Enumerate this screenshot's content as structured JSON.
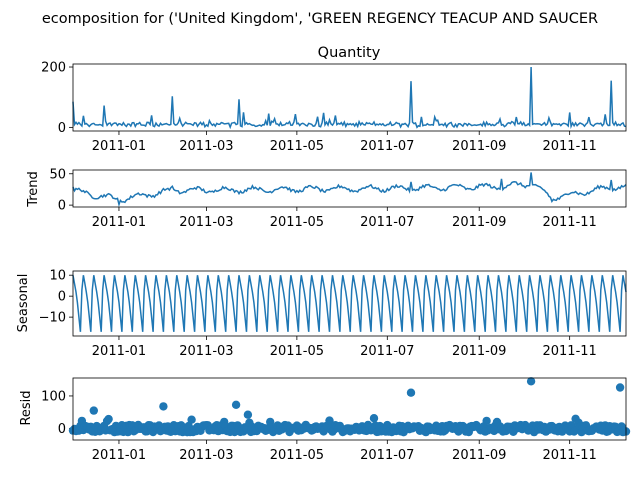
{
  "chart_data": {
    "type": "line",
    "suptitle": "ecomposition for ('United Kingdom', 'GREEN REGENCY TEACUP AND SAUCER",
    "color": "#1f77b4",
    "x_ticks": [
      "2011-01",
      "2011-03",
      "2011-05",
      "2011-07",
      "2011-09",
      "2011-11"
    ],
    "x_tick_dates": [
      "2011-01-01",
      "2011-03-01",
      "2011-05-01",
      "2011-07-01",
      "2011-09-01",
      "2011-11-01"
    ],
    "x_range": [
      "2010-12-01",
      "2011-12-09"
    ],
    "panels": [
      {
        "id": "observed",
        "title": "Quantity",
        "ylabel": "",
        "ylim": [
          -12,
          210
        ],
        "yticks": [
          "0",
          "200"
        ],
        "ytick_values": [
          0,
          200
        ],
        "style": "line",
        "key_points": [
          {
            "x": "2010-12-01",
            "y": 85
          },
          {
            "x": "2010-12-22",
            "y": 72
          },
          {
            "x": "2011-02-06",
            "y": 103
          },
          {
            "x": "2011-03-23",
            "y": 93
          },
          {
            "x": "2011-07-17",
            "y": 153
          },
          {
            "x": "2011-10-06",
            "y": 200
          },
          {
            "x": "2011-11-29",
            "y": 155
          }
        ]
      },
      {
        "id": "trend",
        "title": "",
        "ylabel": "Trend",
        "ylim": [
          -3,
          56
        ],
        "yticks": [
          "0",
          "50"
        ],
        "ytick_values": [
          0,
          50
        ],
        "style": "line",
        "key_points": [
          {
            "x": "2010-12-01",
            "y": 29
          },
          {
            "x": "2011-01-01",
            "y": 1
          },
          {
            "x": "2011-02-06",
            "y": 30
          },
          {
            "x": "2011-07-17",
            "y": 37
          },
          {
            "x": "2011-09-16",
            "y": 42
          },
          {
            "x": "2011-10-06",
            "y": 52
          },
          {
            "x": "2011-10-20",
            "y": 6
          },
          {
            "x": "2011-11-29",
            "y": 40
          }
        ]
      },
      {
        "id": "seasonal",
        "title": "",
        "ylabel": "Seasonal",
        "ylim": [
          -19,
          12
        ],
        "yticks": [
          "−10",
          "0",
          "10"
        ],
        "ytick_values": [
          -10,
          0,
          10
        ],
        "style": "line",
        "period_days": 7,
        "weekly_pattern": [
          10,
          6,
          2,
          -3,
          -10,
          -17,
          3
        ]
      },
      {
        "id": "resid",
        "title": "",
        "ylabel": "Resid",
        "ylim": [
          -35,
          155
        ],
        "yticks": [
          "0",
          "100"
        ],
        "ytick_values": [
          0,
          100
        ],
        "style": "scatter",
        "key_points": [
          {
            "x": "2010-12-15",
            "y": 55
          },
          {
            "x": "2011-01-31",
            "y": 68
          },
          {
            "x": "2011-03-21",
            "y": 73
          },
          {
            "x": "2011-07-17",
            "y": 110
          },
          {
            "x": "2011-10-06",
            "y": 145
          },
          {
            "x": "2011-12-05",
            "y": 126
          }
        ]
      }
    ]
  }
}
